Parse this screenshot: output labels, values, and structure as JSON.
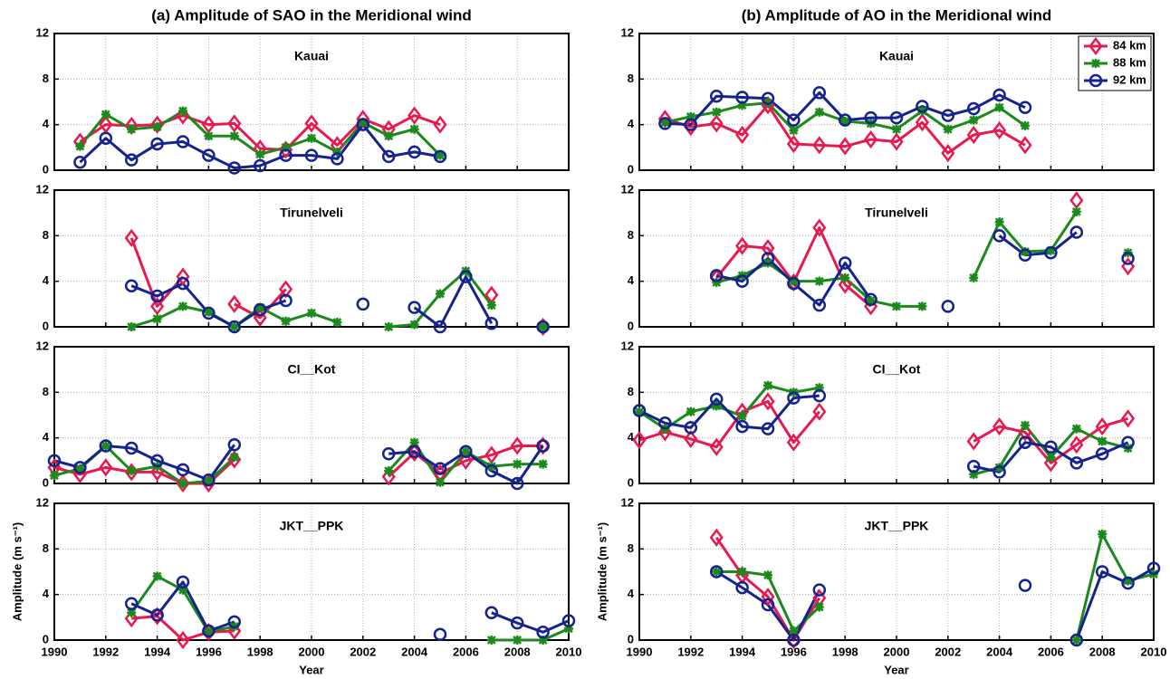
{
  "chart_data": [
    {
      "type": "line",
      "suptitle": "(a) Amplitude of SAO in the Meridional wind",
      "title": "Kauai",
      "grid": true,
      "x": [
        1990,
        1991,
        1992,
        1993,
        1994,
        1995,
        1996,
        1997,
        1998,
        1999,
        2000,
        2001,
        2002,
        2003,
        2004,
        2005,
        2006,
        2007,
        2008,
        2009,
        2010
      ],
      "xlim": [
        1990,
        2010
      ],
      "xticks": [
        1990,
        1992,
        1994,
        1996,
        1998,
        2000,
        2002,
        2004,
        2006,
        2008,
        2010
      ],
      "ylim": [
        0,
        12
      ],
      "yticks": [
        0,
        4,
        8,
        12
      ],
      "series": [
        {
          "name": "84 km",
          "color": "#e8194f",
          "marker": "diamond",
          "values": [
            null,
            2.5,
            4.0,
            3.9,
            4.0,
            4.8,
            4.0,
            4.1,
            1.9,
            1.8,
            4.1,
            2.2,
            4.5,
            3.6,
            4.8,
            4.0,
            null,
            null,
            null,
            null,
            null
          ]
        },
        {
          "name": "88 km",
          "color": "#1b8a1b",
          "marker": "asterisk",
          "values": [
            null,
            2.1,
            4.9,
            3.6,
            3.8,
            5.2,
            3.0,
            3.0,
            1.4,
            2.0,
            2.8,
            1.6,
            4.2,
            3.0,
            3.6,
            1.3,
            null,
            null,
            null,
            null,
            null
          ]
        },
        {
          "name": "92 km",
          "color": "#15238e",
          "marker": "circle",
          "values": [
            null,
            0.7,
            2.8,
            0.9,
            2.3,
            2.5,
            1.3,
            0.2,
            0.4,
            1.3,
            1.3,
            1.0,
            4.0,
            1.2,
            1.6,
            1.2,
            null,
            null,
            null,
            null,
            null
          ]
        }
      ]
    },
    {
      "type": "line",
      "title": "Tirunelveli",
      "grid": true,
      "x": [
        1990,
        1991,
        1992,
        1993,
        1994,
        1995,
        1996,
        1997,
        1998,
        1999,
        2000,
        2001,
        2002,
        2003,
        2004,
        2005,
        2006,
        2007,
        2008,
        2009,
        2010
      ],
      "xlim": [
        1990,
        2010
      ],
      "xticks": [
        1990,
        1992,
        1994,
        1996,
        1998,
        2000,
        2002,
        2004,
        2006,
        2008,
        2010
      ],
      "ylim": [
        0,
        12
      ],
      "yticks": [
        0,
        4,
        8,
        12
      ],
      "series": [
        {
          "name": "84 km",
          "color": "#e8194f",
          "marker": "diamond",
          "values": [
            null,
            null,
            null,
            7.8,
            1.8,
            4.4,
            null,
            2.0,
            0.8,
            3.3,
            null,
            null,
            null,
            null,
            null,
            null,
            null,
            2.8,
            null,
            0,
            null
          ]
        },
        {
          "name": "88 km",
          "color": "#1b8a1b",
          "marker": "asterisk",
          "values": [
            null,
            null,
            null,
            0,
            0.7,
            1.8,
            1.3,
            0,
            1.7,
            0.5,
            1.2,
            0.4,
            null,
            0,
            0.2,
            2.9,
            4.9,
            1.9,
            null,
            0,
            null
          ]
        },
        {
          "name": "92 km",
          "color": "#15238e",
          "marker": "circle",
          "values": [
            null,
            null,
            null,
            3.6,
            2.7,
            3.8,
            1.2,
            0,
            1.5,
            2.3,
            null,
            null,
            2.0,
            null,
            1.7,
            0,
            4.4,
            0.3,
            null,
            0,
            null
          ]
        }
      ]
    },
    {
      "type": "line",
      "title": "CI__Kot",
      "grid": true,
      "x": [
        1990,
        1991,
        1992,
        1993,
        1994,
        1995,
        1996,
        1997,
        1998,
        1999,
        2000,
        2001,
        2002,
        2003,
        2004,
        2005,
        2006,
        2007,
        2008,
        2009,
        2010
      ],
      "xlim": [
        1990,
        2010
      ],
      "xticks": [
        1990,
        1992,
        1994,
        1996,
        1998,
        2000,
        2002,
        2004,
        2006,
        2008,
        2010
      ],
      "ylim": [
        0,
        12
      ],
      "yticks": [
        0,
        4,
        8,
        12
      ],
      "series": [
        {
          "name": "84 km",
          "color": "#e8194f",
          "marker": "diamond",
          "values": [
            1.4,
            0.8,
            1.4,
            1.0,
            1.0,
            0,
            0,
            2.1,
            null,
            null,
            null,
            null,
            null,
            0.6,
            2.7,
            0.9,
            2.0,
            2.5,
            3.3,
            3.3,
            null
          ]
        },
        {
          "name": "88 km",
          "color": "#1b8a1b",
          "marker": "asterisk",
          "values": [
            0.7,
            1.3,
            3.3,
            1.1,
            1.5,
            0,
            0.2,
            2.3,
            null,
            null,
            null,
            null,
            null,
            1.1,
            3.6,
            0.1,
            2.8,
            1.5,
            1.7,
            1.7,
            null
          ]
        },
        {
          "name": "92 km",
          "color": "#15238e",
          "marker": "circle",
          "values": [
            2.0,
            1.4,
            3.3,
            3.1,
            2.0,
            1.2,
            0.3,
            3.4,
            null,
            null,
            null,
            null,
            null,
            2.6,
            2.8,
            1.3,
            2.8,
            1.1,
            0,
            3.3,
            null
          ]
        }
      ]
    },
    {
      "type": "line",
      "title": "JKT__PPK",
      "grid": true,
      "xlabel": "Year",
      "ylabel": "Amplitude (m s⁻¹)",
      "x": [
        1990,
        1991,
        1992,
        1993,
        1994,
        1995,
        1996,
        1997,
        1998,
        1999,
        2000,
        2001,
        2002,
        2003,
        2004,
        2005,
        2006,
        2007,
        2008,
        2009,
        2010
      ],
      "xlim": [
        1990,
        2010
      ],
      "xticks": [
        1990,
        1992,
        1994,
        1996,
        1998,
        2000,
        2002,
        2004,
        2006,
        2008,
        2010
      ],
      "ylim": [
        0,
        12
      ],
      "yticks": [
        0,
        4,
        8,
        12
      ],
      "series": [
        {
          "name": "84 km",
          "color": "#e8194f",
          "marker": "diamond",
          "values": [
            null,
            null,
            null,
            1.9,
            2.1,
            0,
            0.7,
            0.8,
            null,
            null,
            null,
            null,
            null,
            null,
            null,
            null,
            null,
            null,
            null,
            null,
            null
          ]
        },
        {
          "name": "88 km",
          "color": "#1b8a1b",
          "marker": "asterisk",
          "values": [
            null,
            null,
            null,
            2.4,
            5.6,
            4.4,
            0.7,
            1.2,
            null,
            null,
            null,
            null,
            null,
            null,
            null,
            null,
            null,
            0,
            0,
            0,
            1.0
          ]
        },
        {
          "name": "92 km",
          "color": "#15238e",
          "marker": "circle",
          "values": [
            null,
            null,
            null,
            3.2,
            2.2,
            5.1,
            0.8,
            1.6,
            null,
            null,
            null,
            null,
            null,
            null,
            null,
            0.5,
            null,
            2.4,
            1.5,
            0.7,
            1.7
          ]
        }
      ]
    },
    {
      "type": "line",
      "suptitle": "(b) Amplitude of AO in the Meridional wind",
      "title": "Kauai",
      "grid": true,
      "legend": "upper right",
      "x": [
        1990,
        1991,
        1992,
        1993,
        1994,
        1995,
        1996,
        1997,
        1998,
        1999,
        2000,
        2001,
        2002,
        2003,
        2004,
        2005,
        2006,
        2007,
        2008,
        2009,
        2010
      ],
      "xlim": [
        1990,
        2010
      ],
      "xticks": [
        1990,
        1992,
        1994,
        1996,
        1998,
        2000,
        2002,
        2004,
        2006,
        2008,
        2010
      ],
      "ylim": [
        0,
        12
      ],
      "yticks": [
        0,
        4,
        8,
        12
      ],
      "series": [
        {
          "name": "84 km",
          "color": "#e8194f",
          "marker": "diamond",
          "values": [
            null,
            4.5,
            3.8,
            4.1,
            3.1,
            5.7,
            2.3,
            2.2,
            2.1,
            2.7,
            2.5,
            4.2,
            1.5,
            3.1,
            3.5,
            2.2,
            null,
            null,
            null,
            null,
            null
          ]
        },
        {
          "name": "88 km",
          "color": "#1b8a1b",
          "marker": "asterisk",
          "values": [
            null,
            4.2,
            4.7,
            5.1,
            5.7,
            5.9,
            3.5,
            5.1,
            4.3,
            4.1,
            3.6,
            5.2,
            3.6,
            4.4,
            5.5,
            3.9,
            null,
            null,
            null,
            null,
            null
          ]
        },
        {
          "name": "92 km",
          "color": "#15238e",
          "marker": "circle",
          "values": [
            null,
            4.1,
            4.0,
            6.5,
            6.4,
            6.3,
            4.4,
            6.8,
            4.4,
            4.6,
            4.6,
            5.6,
            4.8,
            5.4,
            6.6,
            5.5,
            null,
            null,
            null,
            null,
            null
          ]
        }
      ]
    },
    {
      "type": "line",
      "title": "Tirunelveli",
      "grid": true,
      "x": [
        1990,
        1991,
        1992,
        1993,
        1994,
        1995,
        1996,
        1997,
        1998,
        1999,
        2000,
        2001,
        2002,
        2003,
        2004,
        2005,
        2006,
        2007,
        2008,
        2009,
        2010
      ],
      "xlim": [
        1990,
        2010
      ],
      "xticks": [
        1990,
        1992,
        1994,
        1996,
        1998,
        2000,
        2002,
        2004,
        2006,
        2008,
        2010
      ],
      "ylim": [
        0,
        12
      ],
      "yticks": [
        0,
        4,
        8,
        12
      ],
      "series": [
        {
          "name": "84 km",
          "color": "#e8194f",
          "marker": "diamond",
          "values": [
            null,
            null,
            null,
            4.3,
            7.1,
            6.9,
            3.9,
            8.7,
            3.7,
            1.8,
            null,
            null,
            null,
            null,
            null,
            null,
            null,
            11.1,
            null,
            5.3,
            null
          ]
        },
        {
          "name": "88 km",
          "color": "#1b8a1b",
          "marker": "asterisk",
          "values": [
            null,
            null,
            null,
            3.9,
            4.5,
            5.6,
            4.0,
            4.0,
            4.3,
            2.3,
            1.8,
            1.8,
            null,
            4.3,
            9.2,
            6.6,
            6.7,
            10.1,
            null,
            6.5,
            null
          ]
        },
        {
          "name": "92 km",
          "color": "#15238e",
          "marker": "circle",
          "values": [
            null,
            null,
            null,
            4.5,
            4.0,
            6.0,
            3.8,
            1.9,
            5.6,
            2.4,
            null,
            null,
            1.8,
            null,
            8.0,
            6.3,
            6.5,
            8.3,
            null,
            6.0,
            null
          ]
        }
      ]
    },
    {
      "type": "line",
      "title": "CI__Kot",
      "grid": true,
      "x": [
        1990,
        1991,
        1992,
        1993,
        1994,
        1995,
        1996,
        1997,
        1998,
        1999,
        2000,
        2001,
        2002,
        2003,
        2004,
        2005,
        2006,
        2007,
        2008,
        2009,
        2010
      ],
      "xlim": [
        1990,
        2010
      ],
      "xticks": [
        1990,
        1992,
        1994,
        1996,
        1998,
        2000,
        2002,
        2004,
        2006,
        2008,
        2010
      ],
      "ylim": [
        0,
        12
      ],
      "yticks": [
        0,
        4,
        8,
        12
      ],
      "series": [
        {
          "name": "84 km",
          "color": "#e8194f",
          "marker": "diamond",
          "values": [
            3.8,
            4.5,
            3.9,
            3.2,
            6.3,
            7.2,
            3.6,
            6.3,
            null,
            null,
            null,
            null,
            null,
            3.7,
            5.0,
            4.5,
            1.8,
            3.4,
            5.0,
            5.7,
            null
          ]
        },
        {
          "name": "88 km",
          "color": "#1b8a1b",
          "marker": "asterisk",
          "values": [
            6.3,
            4.8,
            6.3,
            6.8,
            5.9,
            8.6,
            8.0,
            8.4,
            null,
            null,
            null,
            null,
            null,
            0.8,
            1.4,
            5.1,
            2.3,
            4.8,
            3.7,
            3.1,
            null
          ]
        },
        {
          "name": "92 km",
          "color": "#15238e",
          "marker": "circle",
          "values": [
            6.4,
            5.3,
            4.9,
            7.4,
            5.0,
            4.8,
            7.5,
            7.7,
            null,
            null,
            null,
            null,
            null,
            1.5,
            1.0,
            3.6,
            3.2,
            1.8,
            2.6,
            3.6,
            null
          ]
        }
      ]
    },
    {
      "type": "line",
      "title": "JKT__PPK",
      "grid": true,
      "xlabel": "Year",
      "ylabel": "Amplitude (m s⁻¹)",
      "x": [
        1990,
        1991,
        1992,
        1993,
        1994,
        1995,
        1996,
        1997,
        1998,
        1999,
        2000,
        2001,
        2002,
        2003,
        2004,
        2005,
        2006,
        2007,
        2008,
        2009,
        2010
      ],
      "xlim": [
        1990,
        2010
      ],
      "xticks": [
        1990,
        1992,
        1994,
        1996,
        1998,
        2000,
        2002,
        2004,
        2006,
        2008,
        2010
      ],
      "ylim": [
        0,
        12
      ],
      "yticks": [
        0,
        4,
        8,
        12
      ],
      "series": [
        {
          "name": "84 km",
          "color": "#e8194f",
          "marker": "diamond",
          "values": [
            null,
            null,
            null,
            9.0,
            5.7,
            3.8,
            0,
            3.7,
            null,
            null,
            null,
            null,
            null,
            null,
            null,
            null,
            null,
            null,
            null,
            null,
            null
          ]
        },
        {
          "name": "88 km",
          "color": "#1b8a1b",
          "marker": "asterisk",
          "values": [
            null,
            null,
            null,
            6.0,
            6.0,
            5.7,
            0.8,
            2.9,
            null,
            null,
            null,
            null,
            null,
            null,
            null,
            null,
            null,
            0,
            9.3,
            5.2,
            5.8
          ]
        },
        {
          "name": "92 km",
          "color": "#15238e",
          "marker": "circle",
          "values": [
            null,
            null,
            null,
            6.0,
            4.6,
            3.1,
            0,
            4.4,
            null,
            null,
            null,
            null,
            null,
            null,
            null,
            4.8,
            null,
            0,
            6.0,
            5.0,
            6.3
          ]
        }
      ]
    }
  ]
}
